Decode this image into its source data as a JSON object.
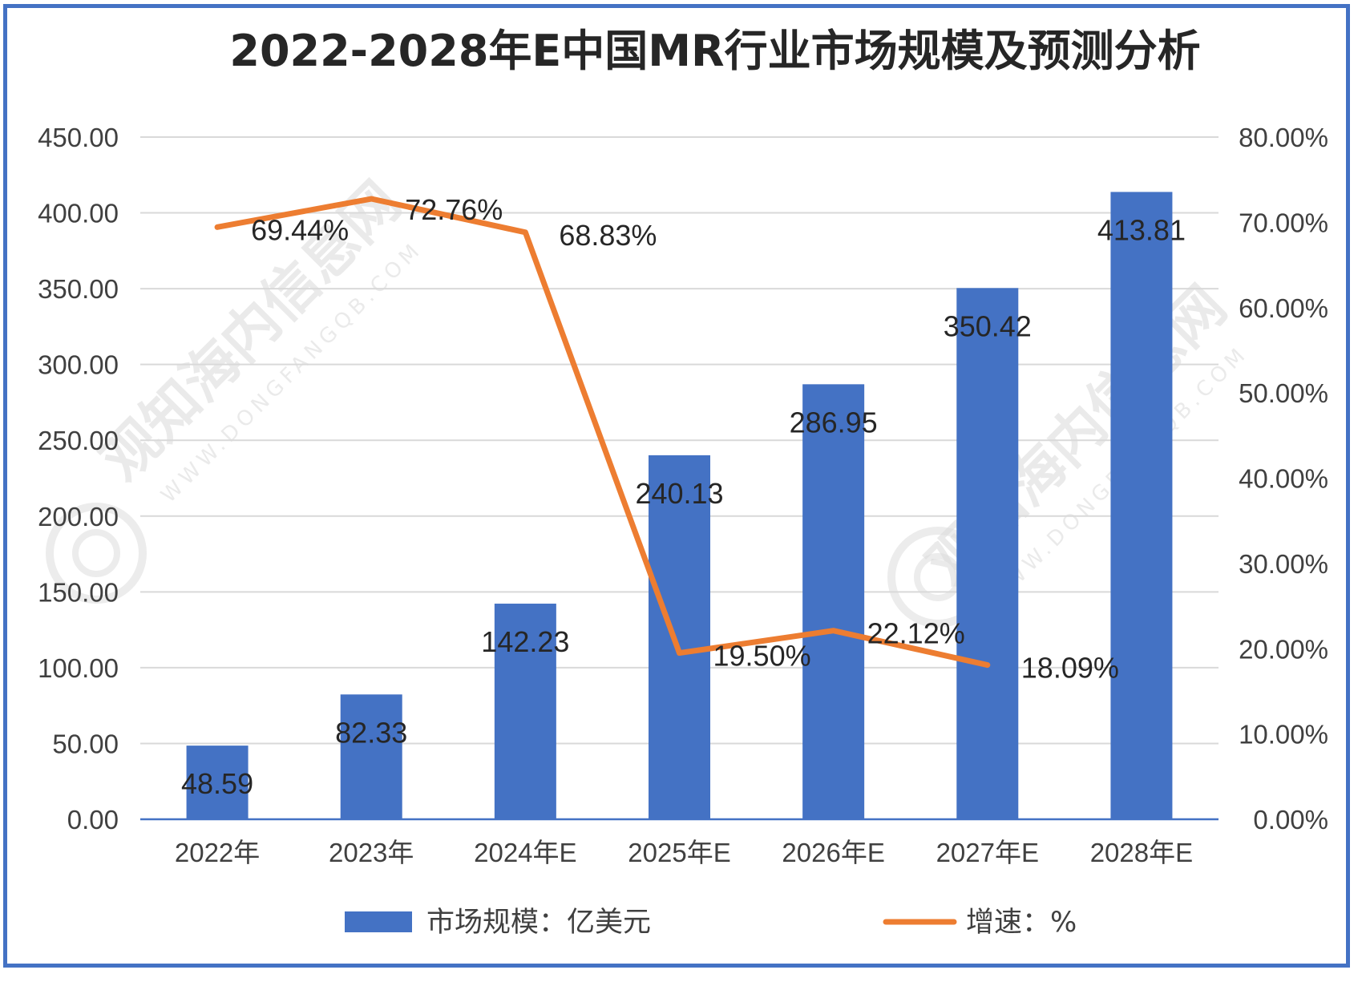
{
  "colors": {
    "bar": "#4472C4",
    "line": "#ED7D31",
    "frame": "#4472C4",
    "grid": "#D9D9D9"
  },
  "chart_data": {
    "type": "bar",
    "title": "2022-2028年E中国MR行业市场规模及预测分析",
    "categories": [
      "2022年",
      "2023年",
      "2024年E",
      "2025年E",
      "2026年E",
      "2027年E",
      "2028年E"
    ],
    "series": [
      {
        "name": "市场规模：亿美元",
        "type": "bar",
        "axis": "left",
        "values": [
          48.59,
          82.33,
          142.23,
          240.13,
          286.95,
          350.42,
          413.81
        ],
        "labels": [
          "48.59",
          "82.33",
          "142.23",
          "240.13",
          "286.95",
          "350.42",
          "413.81"
        ]
      },
      {
        "name": "增速：%",
        "type": "line",
        "axis": "right",
        "values": [
          69.44,
          72.76,
          68.83,
          19.5,
          22.12,
          18.09,
          null
        ],
        "labels": [
          "69.44%",
          "72.76%",
          "68.83%",
          "19.50%",
          "22.12%",
          "18.09%",
          null
        ]
      }
    ],
    "y_left": {
      "ylim": [
        0,
        450
      ],
      "ticks": [
        "0.00",
        "50.00",
        "100.00",
        "150.00",
        "200.00",
        "250.00",
        "300.00",
        "350.00",
        "400.00",
        "450.00"
      ]
    },
    "y_right": {
      "ylim": [
        0,
        80
      ],
      "ticks": [
        "0.00%",
        "10.00%",
        "20.00%",
        "30.00%",
        "40.00%",
        "50.00%",
        "60.00%",
        "70.00%",
        "80.00%"
      ]
    },
    "grid": true,
    "legend_position": "bottom"
  },
  "watermark": {
    "text": "观知海内信息网",
    "url": "WWW.DONGFANGQB.COM"
  }
}
